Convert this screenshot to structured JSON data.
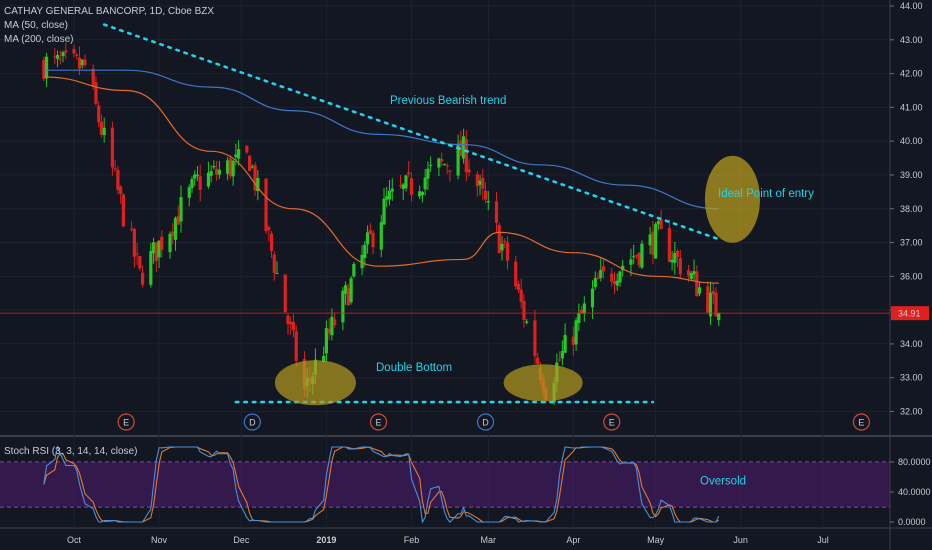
{
  "title": "CATHAY GENERAL BANCORP, 1D, Cboe BZX",
  "indicators": {
    "ma50": "MA (50, close)",
    "ma200": "MA (200, close)",
    "stoch": "Stoch RSI (3, 3, 14, 14, close)"
  },
  "colors": {
    "background": "#131722",
    "up": "#26c826",
    "down": "#e0201e",
    "ma50": "#e26a2c",
    "ma200": "#3f77c7",
    "annotation": "#22d3e8",
    "highlight": "#b59a1f",
    "last_price": "#e0201e",
    "stoch_k": "#4a8fd8",
    "stoch_d": "#e07a2c",
    "stoch_band": "#4b1a6b"
  },
  "chart_data": [
    {
      "type": "candlestick",
      "title": "CATHAY GENERAL BANCORP, 1D, Cboe BZX",
      "y_ticks": [
        "32.00",
        "33.00",
        "34.00",
        "35.00",
        "36.00",
        "37.00",
        "38.00",
        "39.00",
        "40.00",
        "41.00",
        "42.00",
        "43.00",
        "44.00"
      ],
      "x_ticks": [
        "Oct",
        "Nov",
        "Dec",
        "2019",
        "Feb",
        "Mar",
        "Apr",
        "May",
        "Jun",
        "Jul"
      ],
      "ylim": [
        31.5,
        44.0
      ],
      "last_price": "34.91",
      "key_closes": [
        {
          "date": "2018-09-20",
          "close": 42.3
        },
        {
          "date": "2018-10-05",
          "close": 42.2
        },
        {
          "date": "2018-10-25",
          "close": 36.0
        },
        {
          "date": "2018-11-15",
          "close": 38.8
        },
        {
          "date": "2018-12-04",
          "close": 39.5
        },
        {
          "date": "2018-12-24",
          "close": 32.6
        },
        {
          "date": "2019-01-23",
          "close": 38.2
        },
        {
          "date": "2019-02-20",
          "close": 39.7
        },
        {
          "date": "2019-03-08",
          "close": 36.5
        },
        {
          "date": "2019-03-22",
          "close": 32.7
        },
        {
          "date": "2019-04-10",
          "close": 35.8
        },
        {
          "date": "2019-05-02",
          "close": 37.2
        },
        {
          "date": "2019-05-24",
          "close": 34.91
        }
      ],
      "series": [
        {
          "name": "MA (50, close)",
          "values": [
            {
              "date": "2018-09-20",
              "value": 41.9
            },
            {
              "date": "2018-10-20",
              "value": 41.5
            },
            {
              "date": "2018-11-20",
              "value": 39.7
            },
            {
              "date": "2018-12-20",
              "value": 38.0
            },
            {
              "date": "2019-01-20",
              "value": 36.3
            },
            {
              "date": "2019-02-20",
              "value": 36.5
            },
            {
              "date": "2019-03-05",
              "value": 37.3
            },
            {
              "date": "2019-04-01",
              "value": 36.7
            },
            {
              "date": "2019-05-01",
              "value": 36.0
            },
            {
              "date": "2019-05-24",
              "value": 35.8
            }
          ]
        },
        {
          "name": "MA (200, close)",
          "values": [
            {
              "date": "2018-09-20",
              "value": 42.1
            },
            {
              "date": "2018-10-20",
              "value": 42.1
            },
            {
              "date": "2018-11-20",
              "value": 41.6
            },
            {
              "date": "2018-12-20",
              "value": 40.9
            },
            {
              "date": "2019-01-20",
              "value": 40.2
            },
            {
              "date": "2019-02-20",
              "value": 39.9
            },
            {
              "date": "2019-03-20",
              "value": 39.3
            },
            {
              "date": "2019-04-20",
              "value": 38.7
            },
            {
              "date": "2019-05-24",
              "value": 38.0
            }
          ]
        }
      ],
      "annotations": {
        "previous_trend": "Previous Bearish trend",
        "double_bottom": "Double Bottom",
        "entry": "Ideal Point of entry"
      },
      "event_markers": [
        {
          "label": "E",
          "date": "2018-10-20"
        },
        {
          "label": "D",
          "date": "2018-12-05"
        },
        {
          "label": "E",
          "date": "2019-01-20"
        },
        {
          "label": "D",
          "date": "2019-02-28"
        },
        {
          "label": "E",
          "date": "2019-04-15"
        },
        {
          "label": "E",
          "date": "2019-07-15"
        }
      ]
    },
    {
      "type": "line",
      "title": "Stoch RSI (3, 3, 14, 14, close)",
      "y_ticks": [
        "0.0000",
        "40.0000",
        "80.0000"
      ],
      "ylim": [
        0,
        100
      ],
      "bands": [
        20,
        80
      ],
      "annotations": {
        "oversold": "Oversold"
      }
    }
  ]
}
